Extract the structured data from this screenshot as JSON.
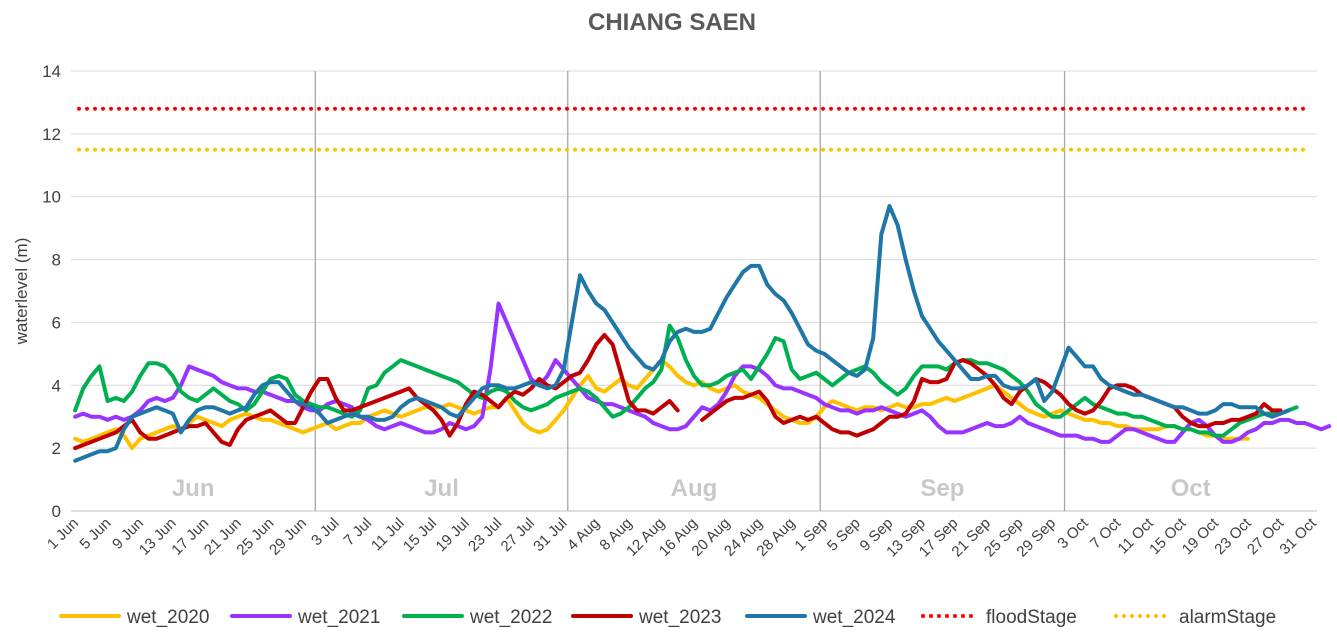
{
  "chart_data": {
    "type": "line",
    "title": "CHIANG SAEN",
    "xlabel": "",
    "ylabel": "waterlevel (m)",
    "ylim": [
      0,
      14
    ],
    "yticks": [
      "0",
      "2",
      "4",
      "6",
      "8",
      "10",
      "12",
      "14"
    ],
    "grid": true,
    "legend_position": "bottom",
    "x_tick_labels": [
      "1 Jun",
      "5 Jun",
      "9 Jun",
      "13 Jun",
      "17 Jun",
      "21 Jun",
      "25 Jun",
      "29 Jun",
      "3 Jul",
      "7 Jul",
      "11 Jul",
      "15 Jul",
      "19 Jul",
      "23 Jul",
      "27 Jul",
      "31 Jul",
      "4 Aug",
      "8 Aug",
      "12 Aug",
      "16 Aug",
      "20 Aug",
      "24 Aug",
      "28 Aug",
      "1 Sep",
      "5 Sep",
      "9 Sep",
      "13 Sep",
      "17 Sep",
      "21 Sep",
      "25 Sep",
      "29 Sep",
      "3 Oct",
      "7 Oct",
      "11 Oct",
      "15 Oct",
      "19 Oct",
      "23 Oct",
      "27 Oct",
      "31 Oct"
    ],
    "months": [
      "Jun",
      "Jul",
      "Aug",
      "Sep",
      "Oct"
    ],
    "x_day_start": 0,
    "x_day_step": 4,
    "series": [
      {
        "name": "wet_2020",
        "color": "#FFC000",
        "values": [
          2.3,
          2.2,
          2.3,
          2.4,
          2.5,
          2.6,
          2.4,
          2.0,
          2.3,
          2.4,
          2.5,
          2.6,
          2.7,
          2.6,
          2.8,
          3.0,
          2.9,
          2.8,
          2.7,
          2.9,
          3.0,
          3.1,
          3.0,
          2.9,
          2.9,
          2.8,
          2.7,
          2.6,
          2.5,
          2.6,
          2.7,
          2.8,
          2.6,
          2.7,
          2.8,
          2.8,
          3.0,
          3.1,
          3.2,
          3.1,
          3.0,
          3.1,
          3.2,
          3.3,
          3.3,
          3.3,
          3.4,
          3.3,
          3.2,
          3.1,
          3.2,
          3.3,
          3.3,
          3.6,
          3.2,
          2.8,
          2.6,
          2.5,
          2.6,
          2.9,
          3.2,
          3.6,
          4.0,
          4.3,
          3.9,
          3.8,
          4.0,
          4.2,
          4.0,
          3.9,
          4.2,
          4.5,
          4.8,
          4.6,
          4.3,
          4.1,
          4.0,
          4.1,
          3.9,
          3.8,
          3.9,
          4.0,
          3.8,
          3.7,
          3.6,
          3.4,
          3.2,
          3.0,
          2.9,
          2.8,
          2.8,
          3.0,
          3.3,
          3.5,
          3.4,
          3.3,
          3.2,
          3.3,
          3.3,
          3.2,
          3.3,
          3.4,
          3.3,
          3.3,
          3.4,
          3.4,
          3.5,
          3.6,
          3.5,
          3.6,
          3.7,
          3.8,
          3.9,
          4.0,
          3.8,
          3.6,
          3.4,
          3.2,
          3.1,
          3.0,
          3.1,
          3.2,
          3.1,
          3.0,
          2.9,
          2.9,
          2.8,
          2.8,
          2.7,
          2.7,
          2.6,
          2.6,
          2.6,
          2.6,
          2.7,
          2.7,
          2.6,
          2.6,
          2.5,
          2.4,
          2.4,
          2.3,
          2.3,
          2.3,
          2.3
        ]
      },
      {
        "name": "wet_2021",
        "color": "#9933FF",
        "values": [
          3.0,
          3.1,
          3.0,
          3.0,
          2.9,
          3.0,
          2.9,
          3.0,
          3.2,
          3.5,
          3.6,
          3.5,
          3.6,
          4.0,
          4.6,
          4.5,
          4.4,
          4.3,
          4.1,
          4.0,
          3.9,
          3.9,
          3.8,
          3.8,
          3.7,
          3.6,
          3.5,
          3.5,
          3.3,
          3.2,
          3.2,
          3.4,
          3.5,
          3.4,
          3.3,
          3.0,
          2.9,
          2.7,
          2.6,
          2.7,
          2.8,
          2.7,
          2.6,
          2.5,
          2.5,
          2.6,
          2.8,
          2.7,
          2.6,
          2.7,
          3.0,
          4.5,
          6.6,
          6.0,
          5.4,
          4.8,
          4.2,
          4.0,
          4.3,
          4.8,
          4.5,
          4.2,
          3.9,
          3.6,
          3.5,
          3.4,
          3.4,
          3.3,
          3.2,
          3.1,
          3.0,
          2.8,
          2.7,
          2.6,
          2.6,
          2.7,
          3.0,
          3.3,
          3.2,
          3.4,
          3.8,
          4.3,
          4.6,
          4.6,
          4.5,
          4.3,
          4.0,
          3.9,
          3.9,
          3.8,
          3.7,
          3.6,
          3.4,
          3.3,
          3.2,
          3.2,
          3.1,
          3.2,
          3.2,
          3.3,
          3.2,
          3.1,
          3.0,
          3.1,
          3.2,
          3.0,
          2.7,
          2.5,
          2.5,
          2.5,
          2.6,
          2.7,
          2.8,
          2.7,
          2.7,
          2.8,
          3.0,
          2.8,
          2.7,
          2.6,
          2.5,
          2.4,
          2.4,
          2.4,
          2.3,
          2.3,
          2.2,
          2.2,
          2.4,
          2.6,
          2.6,
          2.5,
          2.4,
          2.3,
          2.2,
          2.2,
          2.5,
          2.8,
          2.9,
          2.7,
          2.4,
          2.2,
          2.2,
          2.3,
          2.5,
          2.6,
          2.8,
          2.8,
          2.9,
          2.9,
          2.8,
          2.8,
          2.7,
          2.6,
          2.7
        ]
      },
      {
        "name": "wet_2022",
        "color": "#00B050",
        "values": [
          3.2,
          3.9,
          4.3,
          4.6,
          3.5,
          3.6,
          3.5,
          3.8,
          4.3,
          4.7,
          4.7,
          4.6,
          4.3,
          3.8,
          3.6,
          3.5,
          3.7,
          3.9,
          3.7,
          3.5,
          3.4,
          3.2,
          3.4,
          3.8,
          4.2,
          4.3,
          4.2,
          3.7,
          3.5,
          3.4,
          3.3,
          3.3,
          3.2,
          3.1,
          3.0,
          3.2,
          3.9,
          4.0,
          4.4,
          4.6,
          4.8,
          4.7,
          4.6,
          4.5,
          4.4,
          4.3,
          4.2,
          4.1,
          3.9,
          3.7,
          3.6,
          3.8,
          3.9,
          3.8,
          3.5,
          3.3,
          3.2,
          3.3,
          3.4,
          3.6,
          3.7,
          3.8,
          3.9,
          3.8,
          3.6,
          3.3,
          3.0,
          3.1,
          3.3,
          3.6,
          3.9,
          4.1,
          4.5,
          5.9,
          5.5,
          4.8,
          4.3,
          4.0,
          4.0,
          4.1,
          4.3,
          4.4,
          4.5,
          4.2,
          4.6,
          5.0,
          5.5,
          5.4,
          4.5,
          4.2,
          4.3,
          4.4,
          4.2,
          4.0,
          4.2,
          4.4,
          4.5,
          4.6,
          4.4,
          4.1,
          3.9,
          3.7,
          3.9,
          4.3,
          4.6,
          4.6,
          4.6,
          4.5,
          4.7,
          4.8,
          4.8,
          4.7,
          4.7,
          4.6,
          4.5,
          4.3,
          4.1,
          3.8,
          3.4,
          3.2,
          3.0,
          3.0,
          3.2,
          3.4,
          3.6,
          3.4,
          3.3,
          3.2,
          3.1,
          3.1,
          3.0,
          3.0,
          2.9,
          2.8,
          2.7,
          2.7,
          2.6,
          2.6,
          2.5,
          2.5,
          2.4,
          2.4,
          2.6,
          2.8,
          2.9,
          3.0,
          3.1,
          3.1,
          3.1,
          3.2,
          3.3
        ]
      },
      {
        "name": "wet_2023",
        "color": "#C00000",
        "values": [
          2.0,
          2.1,
          2.2,
          2.3,
          2.4,
          2.5,
          2.7,
          2.9,
          2.5,
          2.3,
          2.3,
          2.4,
          2.5,
          2.6,
          2.7,
          2.7,
          2.8,
          2.5,
          2.2,
          2.1,
          2.6,
          2.9,
          3.0,
          3.1,
          3.2,
          3.0,
          2.8,
          2.8,
          3.3,
          3.8,
          4.2,
          4.2,
          3.6,
          3.2,
          3.2,
          3.3,
          3.4,
          3.5,
          3.6,
          3.7,
          3.8,
          3.9,
          3.6,
          3.4,
          3.2,
          2.9,
          2.4,
          2.8,
          3.4,
          3.8,
          3.7,
          3.5,
          3.3,
          3.6,
          3.8,
          3.7,
          3.9,
          4.2,
          4.0,
          3.9,
          4.1,
          4.3,
          4.4,
          4.8,
          5.3,
          5.6,
          5.3,
          4.4,
          3.5,
          3.2,
          3.2,
          3.1,
          3.3,
          3.5,
          3.2,
          null,
          null,
          2.9,
          3.1,
          3.3,
          3.5,
          3.6,
          3.6,
          3.7,
          3.8,
          3.5,
          3.0,
          2.8,
          2.9,
          3.0,
          2.9,
          3.0,
          2.8,
          2.6,
          2.5,
          2.5,
          2.4,
          2.5,
          2.6,
          2.8,
          3.0,
          3.0,
          3.1,
          3.5,
          4.2,
          4.1,
          4.1,
          4.2,
          4.7,
          4.8,
          4.7,
          4.5,
          4.3,
          4.0,
          3.6,
          3.4,
          3.8,
          4.0,
          4.2,
          4.1,
          3.9,
          3.7,
          3.4,
          3.2,
          3.1,
          3.2,
          3.5,
          3.9,
          4.0,
          4.0,
          3.9,
          3.7,
          3.6,
          3.5,
          3.4,
          3.3,
          3.0,
          2.8,
          2.7,
          2.7,
          2.8,
          2.8,
          2.9,
          2.9,
          3.0,
          3.1,
          3.4,
          3.2,
          3.2
        ]
      },
      {
        "name": "wet_2024",
        "color": "#1F77A8",
        "values": [
          1.6,
          1.7,
          1.8,
          1.9,
          1.9,
          2.0,
          2.6,
          3.0,
          3.1,
          3.2,
          3.3,
          3.2,
          3.1,
          2.5,
          2.9,
          3.2,
          3.3,
          3.3,
          3.2,
          3.1,
          3.2,
          3.3,
          3.7,
          4.0,
          4.1,
          4.1,
          3.8,
          3.5,
          3.4,
          3.3,
          3.1,
          2.8,
          2.9,
          3.0,
          3.1,
          3.0,
          3.0,
          2.9,
          2.9,
          3.0,
          3.3,
          3.5,
          3.6,
          3.5,
          3.4,
          3.3,
          3.1,
          3.0,
          3.3,
          3.6,
          3.9,
          4.0,
          4.0,
          3.9,
          3.9,
          4.0,
          4.1,
          4.0,
          3.9,
          4.0,
          4.5,
          6.0,
          7.5,
          7.0,
          6.6,
          6.4,
          6.0,
          5.6,
          5.2,
          4.9,
          4.6,
          4.5,
          4.8,
          5.4,
          5.7,
          5.8,
          5.7,
          5.7,
          5.8,
          6.3,
          6.8,
          7.2,
          7.6,
          7.8,
          7.8,
          7.2,
          6.9,
          6.7,
          6.3,
          5.8,
          5.3,
          5.1,
          5.0,
          4.8,
          4.6,
          4.4,
          4.3,
          4.5,
          5.5,
          8.8,
          9.7,
          9.1,
          8.0,
          7.0,
          6.2,
          5.8,
          5.4,
          5.1,
          4.8,
          4.5,
          4.2,
          4.2,
          4.3,
          4.3,
          4.0,
          3.9,
          3.9,
          4.0,
          4.2,
          3.5,
          3.8,
          4.5,
          5.2,
          4.9,
          4.6,
          4.6,
          4.2,
          4.0,
          3.9,
          3.8,
          3.7,
          3.7,
          3.6,
          3.5,
          3.4,
          3.3,
          3.3,
          3.2,
          3.1,
          3.1,
          3.2,
          3.4,
          3.4,
          3.3,
          3.3,
          3.3,
          3.1,
          3.0,
          3.1,
          3.2
        ]
      },
      {
        "name": "floodStage",
        "color": "#FF0000",
        "dotted": true,
        "values": [
          12.8
        ]
      },
      {
        "name": "alarmStage",
        "color": "#FFC000",
        "dotted": true,
        "values": [
          11.5
        ]
      }
    ]
  }
}
